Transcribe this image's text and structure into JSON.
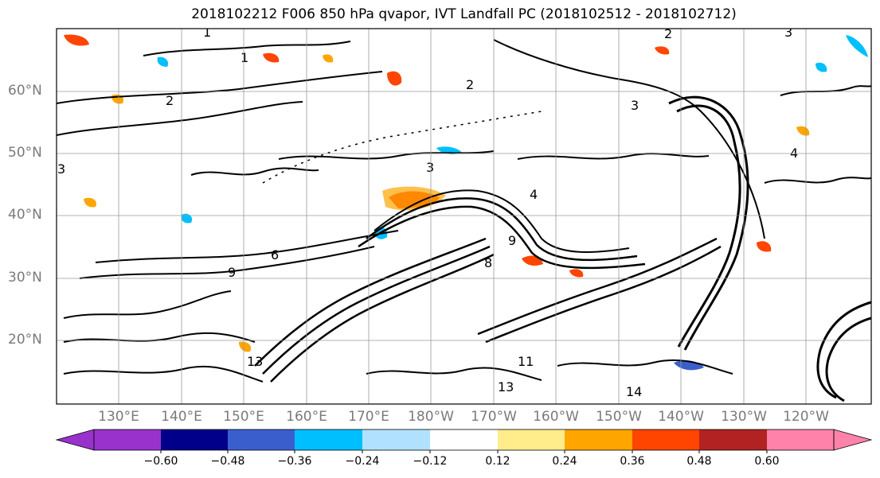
{
  "title": "2018102212 F006 850 hPa qvapor, IVT Landfall PC (2018102512 - 2018102712)",
  "latitude_labels": [
    "60°N",
    "50°N",
    "40°N",
    "30°N",
    "20°N"
  ],
  "longitude_labels": [
    "130°E",
    "140°E",
    "150°E",
    "160°E",
    "170°E",
    "180°W",
    "170°W",
    "160°W",
    "150°W",
    "140°W",
    "130°W",
    "120°W"
  ],
  "colorbar": {
    "tick_labels": [
      "−0.60",
      "−0.48",
      "−0.36",
      "−0.24",
      "−0.12",
      "0.12",
      "0.24",
      "0.36",
      "0.48",
      "0.60"
    ],
    "colors": [
      "#9932cc",
      "#00008b",
      "#3a5fcd",
      "#00bfff",
      "#b0e2ff",
      "#ffffff",
      "#ffec8b",
      "#ffa500",
      "#ff4500",
      "#b22222",
      "#ff82ab"
    ]
  },
  "contour_labels": [
    "1",
    "1",
    "2",
    "2",
    "3",
    "3",
    "3",
    "4",
    "4",
    "6",
    "8",
    "9",
    "9",
    "11",
    "13",
    "13",
    "14",
    "3",
    "2"
  ],
  "colors": {
    "contour": "#000000",
    "grid": "#9a9a9a",
    "frame": "#000000",
    "axis_label": "#7a7a7a"
  }
}
